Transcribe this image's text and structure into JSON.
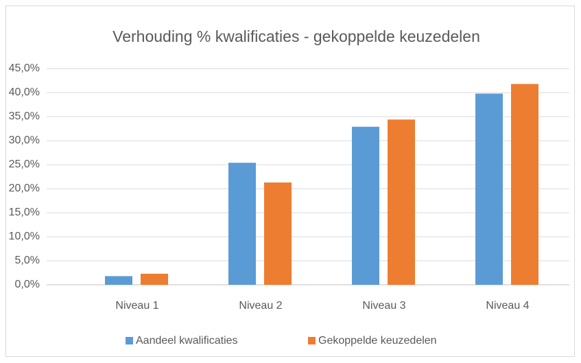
{
  "chart_data": {
    "type": "bar",
    "title": "Verhouding % kwalificaties - gekoppelde keuzedelen",
    "categories": [
      "Niveau 1",
      "Niveau 2",
      "Niveau 3",
      "Niveau 4"
    ],
    "series": [
      {
        "name": "Aandeel kwalificaties",
        "color": "#5b9bd5",
        "values": [
          1.8,
          25.4,
          32.9,
          39.8
        ]
      },
      {
        "name": "Gekoppelde keuzedelen",
        "color": "#ed7d31",
        "values": [
          2.3,
          21.3,
          34.4,
          41.8
        ]
      }
    ],
    "ylim": [
      0,
      45
    ],
    "yticks": [
      {
        "value": 0,
        "label": "0,0%"
      },
      {
        "value": 5,
        "label": "5,0%"
      },
      {
        "value": 10,
        "label": "10,0%"
      },
      {
        "value": 15,
        "label": "15,0%"
      },
      {
        "value": 20,
        "label": "20,0%"
      },
      {
        "value": 25,
        "label": "25,0%"
      },
      {
        "value": 30,
        "label": "30,0%"
      },
      {
        "value": 35,
        "label": "35,0%"
      },
      {
        "value": 40,
        "label": "40,0%"
      },
      {
        "value": 45,
        "label": "45,0%"
      }
    ],
    "grid": true,
    "legend": "bottom"
  }
}
